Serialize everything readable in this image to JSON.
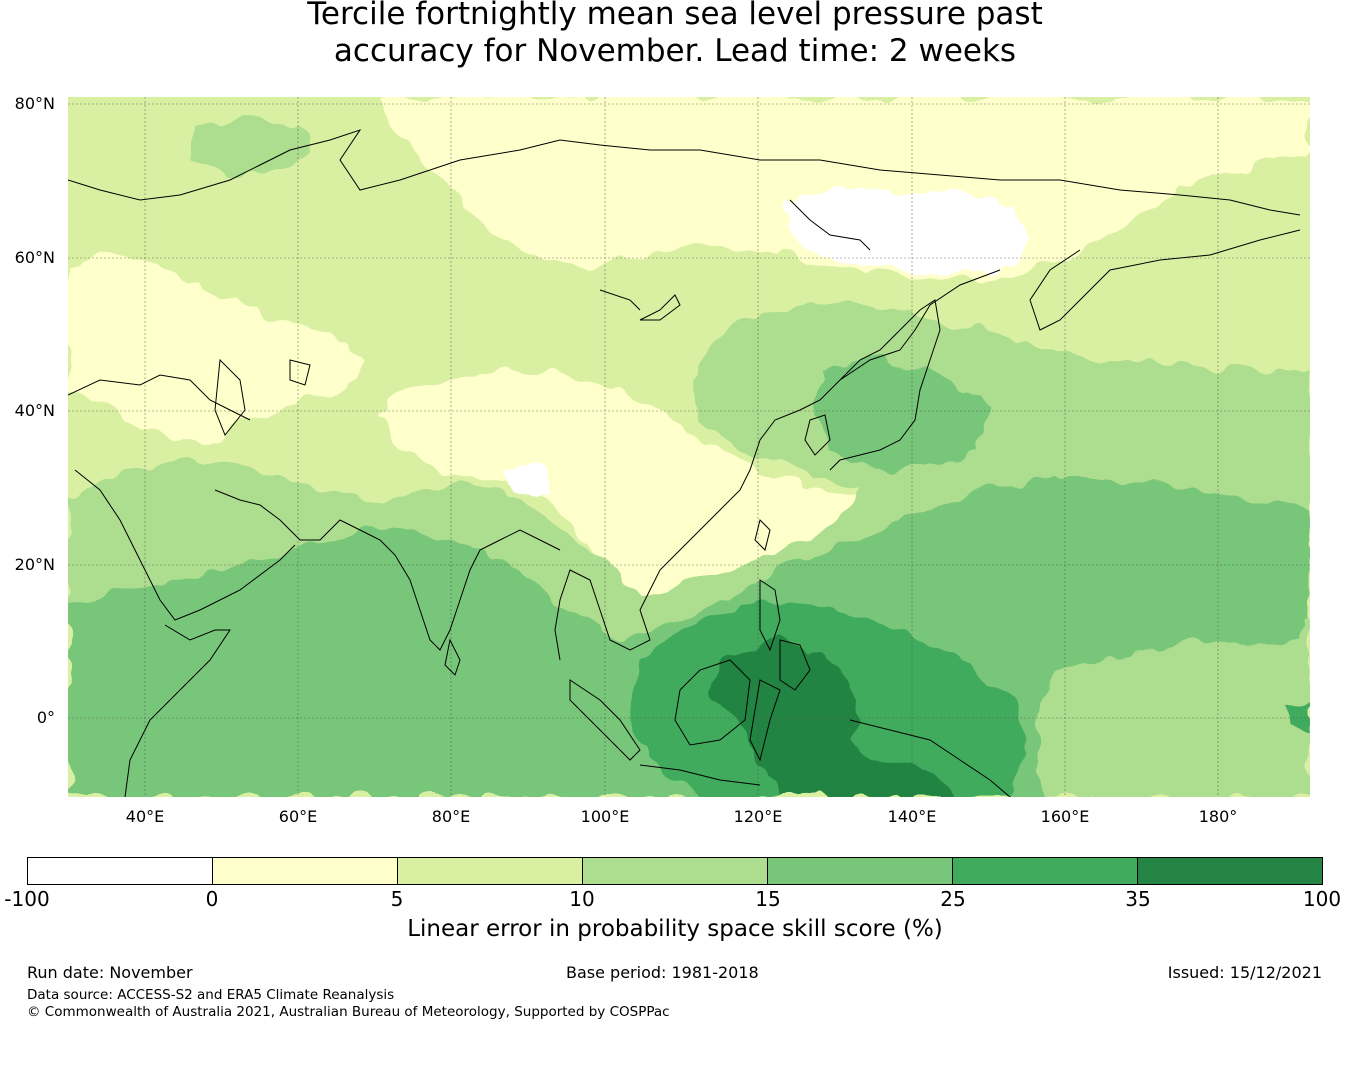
{
  "title": {
    "line1": "Tercile fortnightly mean sea level pressure past",
    "line2": "accuracy for November. Lead time: 2 weeks"
  },
  "map": {
    "lon_range": [
      30,
      192
    ],
    "lat_range": [
      -10,
      81
    ],
    "lat_ticks": [
      "80°N",
      "60°N",
      "40°N",
      "20°N",
      "0°"
    ],
    "lon_ticks": [
      "40°E",
      "60°E",
      "80°E",
      "100°E",
      "120°E",
      "140°E",
      "160°E",
      "180°"
    ],
    "category_colors": [
      "#ffffff",
      "#ffffcc",
      "#d9f0a3",
      "#addd8e",
      "#78c679",
      "#41ab5d",
      "#238443"
    ]
  },
  "colorbar": {
    "ticks": [
      "-100",
      "0",
      "5",
      "10",
      "15",
      "25",
      "35",
      "100"
    ],
    "label": "Linear error in probability space skill score (%)"
  },
  "footer": {
    "run_date": "Run date: November",
    "base_period": "Base period: 1981-2018",
    "issued": "Issued: 15/12/2021",
    "data_source": "Data source: ACCESS-S2 and ERA5 Climate Reanalysis",
    "copyright": "© Commonwealth of Australia 2021, Australian Bureau of Meteorology, Supported by COSPPac"
  }
}
